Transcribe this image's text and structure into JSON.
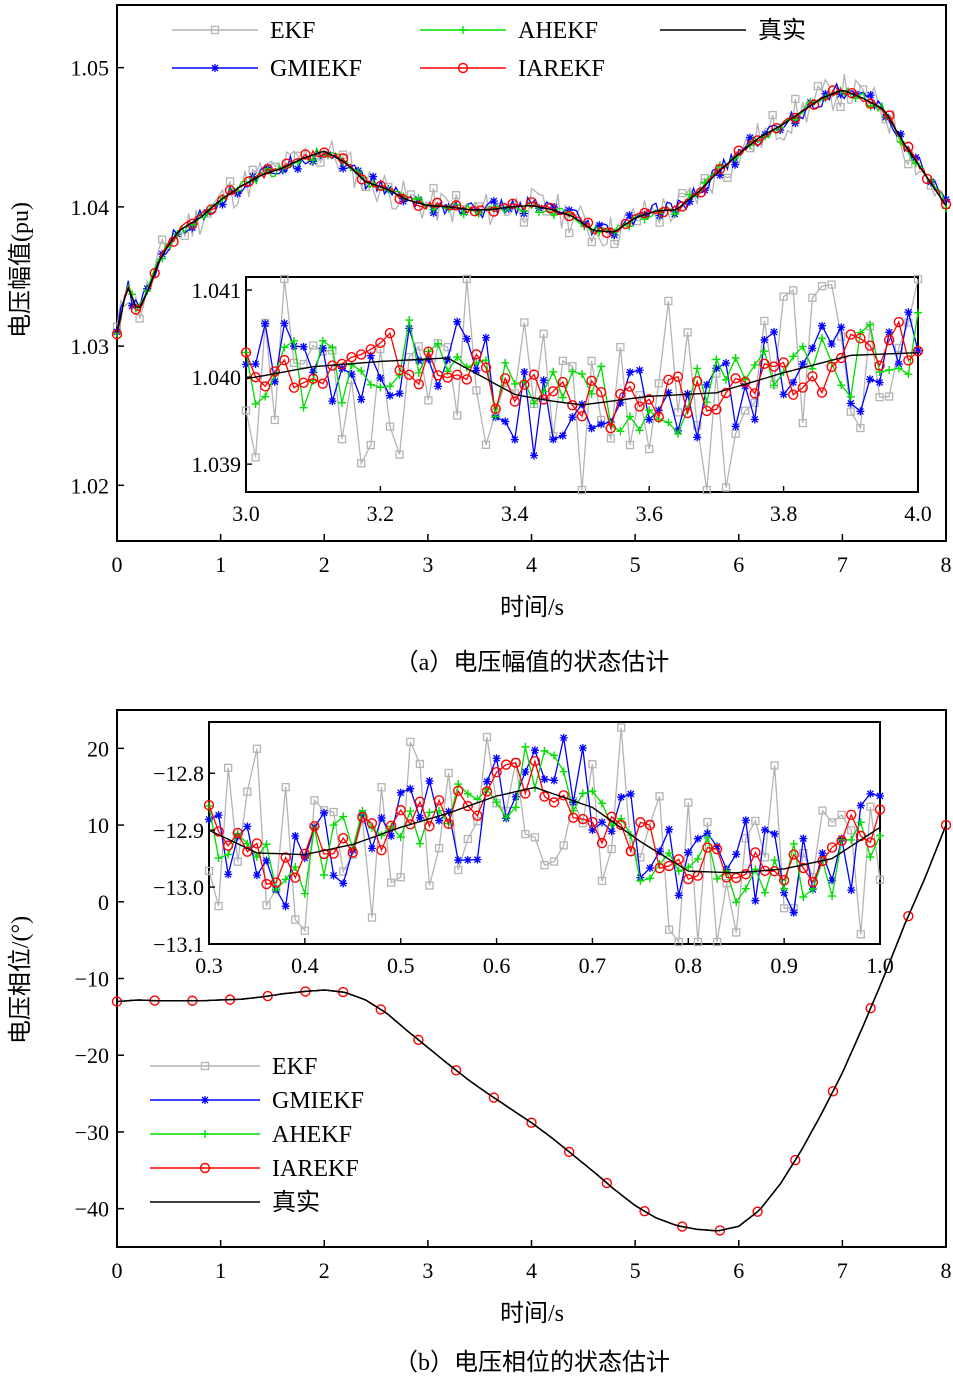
{
  "colors": {
    "EKF": "#b4b4b4",
    "GMIEKF": "#0000ff",
    "AHEKF": "#00dd00",
    "IAREKF": "#ff0000",
    "true": "#000000"
  },
  "chart_data": [
    {
      "type": "line",
      "caption": "（a）电压幅值的状态估计",
      "xlabel": "时间/s",
      "ylabel": "电压幅值(pu)",
      "xlim": [
        0,
        8
      ],
      "ylim": [
        1.016,
        1.0545
      ],
      "xticks": [
        "0",
        "1",
        "2",
        "3",
        "4",
        "5",
        "6",
        "7",
        "8"
      ],
      "yticks": [
        "1.02",
        "1.03",
        "1.04",
        "1.05"
      ],
      "legend_placement": "top, two rows",
      "legend": [
        "EKF",
        "AHEKF",
        "真实",
        "GMIEKF",
        "IAREKF"
      ],
      "x": [
        0,
        0.1,
        0.2,
        0.3,
        0.4,
        0.5,
        0.6,
        0.8,
        1.0,
        1.2,
        1.4,
        1.6,
        1.8,
        2.0,
        2.2,
        2.4,
        2.6,
        2.8,
        3.0,
        3.2,
        3.4,
        3.6,
        3.8,
        4.0,
        4.2,
        4.4,
        4.6,
        4.8,
        5.0,
        5.2,
        5.4,
        5.6,
        5.8,
        6.0,
        6.2,
        6.4,
        6.6,
        6.8,
        7.0,
        7.2,
        7.4,
        7.6,
        7.8,
        8.0
      ],
      "series": [
        {
          "name": "真实",
          "values": [
            1.031,
            1.0343,
            1.0325,
            1.034,
            1.036,
            1.0373,
            1.0383,
            1.0392,
            1.0405,
            1.0415,
            1.0423,
            1.0428,
            1.0435,
            1.044,
            1.0432,
            1.0418,
            1.0413,
            1.0405,
            1.0401,
            1.04,
            1.0398,
            1.0398,
            1.04,
            1.0401,
            1.0398,
            1.0393,
            1.0383,
            1.0382,
            1.0392,
            1.0397,
            1.0398,
            1.041,
            1.0425,
            1.0438,
            1.045,
            1.0458,
            1.0468,
            1.0478,
            1.0484,
            1.0478,
            1.047,
            1.0445,
            1.0423,
            1.0401
          ]
        },
        {
          "name": "EKF",
          "noise": 0.0013
        },
        {
          "name": "GMIEKF",
          "noise": 0.0006
        },
        {
          "name": "AHEKF",
          "noise": 0.0004
        },
        {
          "name": "IAREKF",
          "noise": 0.0003
        }
      ],
      "inset": {
        "xlim": [
          3.0,
          4.0
        ],
        "ylim": [
          1.03868,
          1.04115
        ],
        "xticks": [
          "3.0",
          "3.2",
          "3.4",
          "3.6",
          "3.8",
          "4.0"
        ],
        "yticks": [
          "1.039",
          "1.040",
          "1.041"
        ],
        "x": [
          3.0,
          3.1,
          3.2,
          3.3,
          3.4,
          3.45,
          3.5,
          3.6,
          3.7,
          3.8,
          3.9,
          4.0
        ],
        "true": [
          1.03998,
          1.04012,
          1.04018,
          1.04022,
          1.0398,
          1.03973,
          1.03968,
          1.03978,
          1.03982,
          1.04005,
          1.04025,
          1.04028
        ]
      }
    },
    {
      "type": "line",
      "caption": "（b）电压相位的状态估计",
      "xlabel": "时间/s",
      "ylabel": "电压相位/(°)",
      "xlim": [
        0,
        8
      ],
      "ylim": [
        -45,
        25
      ],
      "xticks": [
        "0",
        "1",
        "2",
        "3",
        "4",
        "5",
        "6",
        "7",
        "8"
      ],
      "yticks": [
        "20",
        "10",
        "0",
        "−10",
        "−20",
        "−30",
        "−40"
      ],
      "legend_placement": "bottom-left",
      "legend": [
        "EKF",
        "GMIEKF",
        "AHEKF",
        "IAREKF",
        "真实"
      ],
      "x": [
        0,
        0.2,
        0.4,
        0.6,
        0.8,
        1.0,
        1.2,
        1.4,
        1.6,
        1.8,
        2.0,
        2.2,
        2.4,
        2.6,
        2.8,
        3.0,
        3.2,
        3.4,
        3.6,
        3.8,
        4.0,
        4.2,
        4.4,
        4.6,
        4.8,
        5.0,
        5.2,
        5.4,
        5.6,
        5.8,
        6.0,
        6.2,
        6.4,
        6.6,
        6.8,
        7.0,
        7.2,
        7.4,
        7.6,
        7.8,
        8.0
      ],
      "series": [
        {
          "name": "真实",
          "values": [
            -13.0,
            -12.8,
            -12.9,
            -12.9,
            -12.9,
            -12.8,
            -12.7,
            -12.4,
            -12.0,
            -11.7,
            -11.5,
            -11.8,
            -12.8,
            -14.5,
            -16.8,
            -19.0,
            -21.2,
            -23.3,
            -25.2,
            -27.0,
            -28.8,
            -30.8,
            -33.0,
            -35.2,
            -37.5,
            -39.6,
            -41.2,
            -42.2,
            -42.7,
            -42.9,
            -42.3,
            -40.2,
            -36.8,
            -32.5,
            -27.6,
            -22.3,
            -16.2,
            -9.8,
            -3.0,
            3.2,
            10.0
          ]
        },
        {
          "name": "EKF",
          "noise": 0
        },
        {
          "name": "GMIEKF",
          "noise": 0
        },
        {
          "name": "AHEKF",
          "noise": 0
        },
        {
          "name": "IAREKF",
          "noise": 0
        }
      ],
      "inset": {
        "xlim": [
          0.3,
          1.0
        ],
        "ylim": [
          -13.1,
          -12.71
        ],
        "xticks": [
          "0.3",
          "0.4",
          "0.5",
          "0.6",
          "0.7",
          "0.8",
          "0.9",
          "1.0"
        ],
        "yticks": [
          "−12.8",
          "−12.9",
          "−13.0",
          "−13.1"
        ],
        "x": [
          0.3,
          0.35,
          0.4,
          0.45,
          0.5,
          0.55,
          0.6,
          0.64,
          0.7,
          0.75,
          0.8,
          0.85,
          0.9,
          0.95,
          1.0
        ],
        "true": [
          -12.9,
          -12.94,
          -12.943,
          -12.925,
          -12.895,
          -12.87,
          -12.84,
          -12.825,
          -12.86,
          -12.92,
          -12.972,
          -12.975,
          -12.968,
          -12.95,
          -12.895
        ]
      }
    }
  ]
}
